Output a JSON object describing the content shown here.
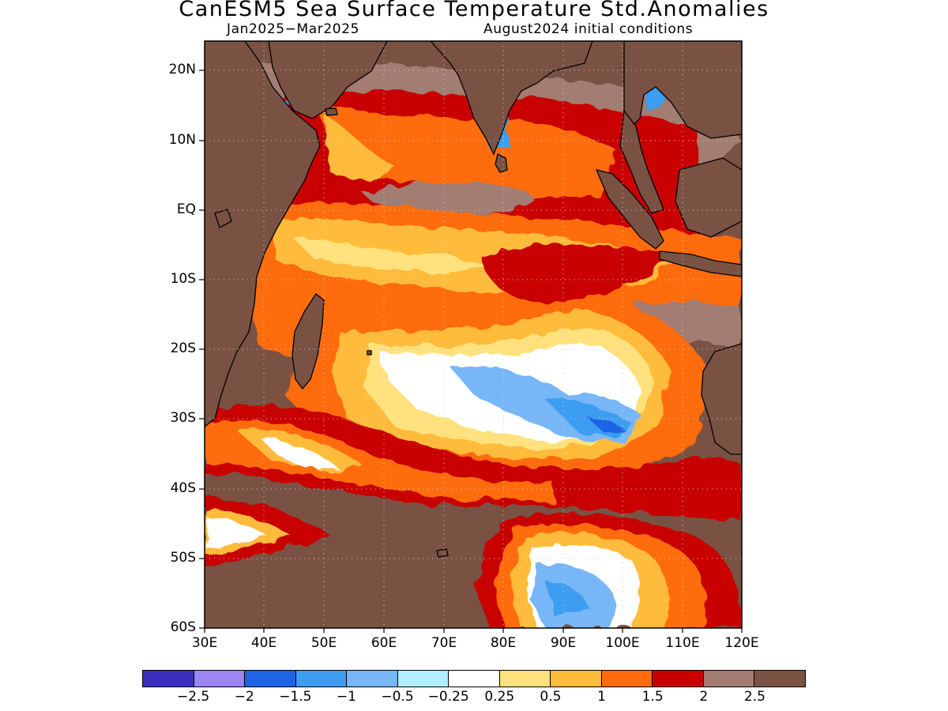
{
  "title": "CanESM5 Sea Surface Temperature Std.Anomalies",
  "subtitle_left": "Jan2025−Mar2025",
  "subtitle_right": "August2024 initial conditions",
  "map": {
    "projection": "latlon",
    "lon_range": [
      30,
      120
    ],
    "lat_range": [
      -60,
      24
    ],
    "land_color": "#7a5244",
    "coastline_color": "#000000",
    "gridlines": "dotted",
    "y_labels": [
      "20N",
      "10N",
      "EQ",
      "10S",
      "20S",
      "30S",
      "40S",
      "50S",
      "60S"
    ],
    "x_labels": [
      "30E",
      "40E",
      "50E",
      "60E",
      "70E",
      "80E",
      "90E",
      "100E",
      "110E",
      "120E"
    ]
  },
  "colorbar": {
    "colors": [
      "#3b2fbf",
      "#9b86f2",
      "#1f63e6",
      "#3e9df1",
      "#78b7f7",
      "#b1eefe",
      "#ffffff",
      "#ffe27e",
      "#ffbb3a",
      "#ff6c0f",
      "#c80000",
      "#a37b72",
      "#7a5244"
    ],
    "labels": [
      "−2.5",
      "−2",
      "−1.5",
      "−1",
      "−0.5",
      "−0.25",
      "0.25",
      "0.5",
      "1",
      "1.5",
      "2",
      "2.5"
    ]
  }
}
